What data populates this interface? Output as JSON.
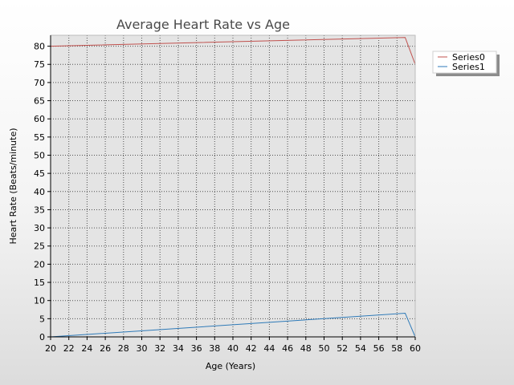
{
  "chart_data": {
    "type": "line",
    "title": "Average Heart Rate vs Age",
    "xlabel": "Age (Years)",
    "ylabel": "Heart Rate (Beats/minute)",
    "xlim": [
      20,
      60
    ],
    "ylim": [
      0,
      83
    ],
    "xticks": [
      20,
      22,
      24,
      26,
      28,
      30,
      32,
      34,
      36,
      38,
      40,
      42,
      44,
      46,
      48,
      50,
      52,
      54,
      56,
      58,
      60
    ],
    "yticks": [
      0,
      5,
      10,
      15,
      20,
      25,
      30,
      35,
      40,
      45,
      50,
      55,
      60,
      65,
      70,
      75,
      80
    ],
    "grid": true,
    "legend_position": "right",
    "series": [
      {
        "name": "Series0",
        "color": "#c0504d",
        "x": [
          20,
          58.9,
          60
        ],
        "y": [
          80.0,
          82.4,
          75.0
        ]
      },
      {
        "name": "Series1",
        "color": "#2e7ab8",
        "x": [
          20,
          58.9,
          60
        ],
        "y": [
          0.0,
          6.5,
          0.0
        ]
      }
    ]
  }
}
